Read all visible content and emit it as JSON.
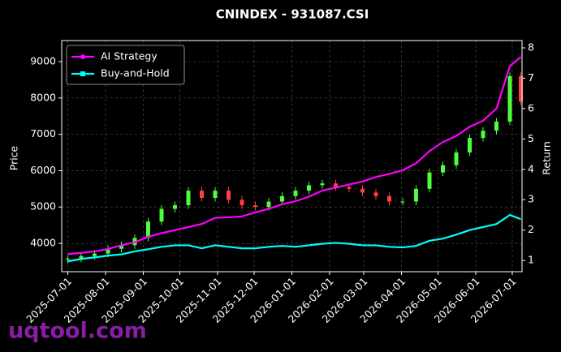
{
  "chart_data": {
    "type": "candlestick",
    "title": "CNINDEX - 931087.CSI",
    "ylabel": "Price",
    "y2label": "Return",
    "watermark": "uqtool.com",
    "x": [
      "2025-07-01",
      "2025-07-12",
      "2025-07-23",
      "2025-08-03",
      "2025-08-14",
      "2025-08-25",
      "2025-09-05",
      "2025-09-16",
      "2025-09-27",
      "2025-10-08",
      "2025-10-19",
      "2025-10-30",
      "2025-11-10",
      "2025-11-21",
      "2025-12-02",
      "2025-12-13",
      "2025-12-24",
      "2026-01-04",
      "2026-01-15",
      "2026-01-26",
      "2026-02-06",
      "2026-02-17",
      "2026-02-28",
      "2026-03-11",
      "2026-03-22",
      "2026-04-02",
      "2026-04-13",
      "2026-04-24",
      "2026-05-05",
      "2026-05-16",
      "2026-05-27",
      "2026-06-07",
      "2026-06-18",
      "2026-06-29",
      "2026-07-08"
    ],
    "open": [
      3550,
      3580,
      3650,
      3720,
      3850,
      3950,
      4150,
      4600,
      4950,
      5050,
      5450,
      5250,
      5450,
      5200,
      5050,
      5000,
      5150,
      5300,
      5450,
      5600,
      5650,
      5550,
      5500,
      5400,
      5300,
      5150,
      5150,
      5500,
      5950,
      6150,
      6500,
      6900,
      7100,
      7350,
      8600
    ],
    "high": [
      3680,
      3750,
      3820,
      3950,
      4050,
      4250,
      4700,
      5050,
      5150,
      5550,
      5550,
      5550,
      5550,
      5300,
      5150,
      5250,
      5400,
      5550,
      5700,
      5750,
      5750,
      5650,
      5600,
      5500,
      5400,
      5250,
      5600,
      6050,
      6250,
      6600,
      7000,
      7200,
      7450,
      8700,
      8700
    ],
    "low": [
      3450,
      3480,
      3550,
      3620,
      3750,
      3850,
      4050,
      4500,
      4850,
      4950,
      5150,
      5150,
      5100,
      4950,
      4900,
      4900,
      5050,
      5200,
      5350,
      5500,
      5450,
      5400,
      5300,
      5200,
      5050,
      5050,
      5050,
      5400,
      5850,
      6050,
      6400,
      6800,
      7000,
      7250,
      7800
    ],
    "close": [
      3580,
      3650,
      3720,
      3850,
      3950,
      4150,
      4600,
      4950,
      5050,
      5450,
      5250,
      5450,
      5200,
      5050,
      5000,
      5150,
      5300,
      5450,
      5600,
      5650,
      5550,
      5500,
      5400,
      5300,
      5150,
      5150,
      5500,
      5950,
      6150,
      6500,
      6900,
      7100,
      7350,
      8600,
      7900
    ],
    "up_color": "#4cff3c",
    "down_color": "#ff4040",
    "series": [
      {
        "name": "AI Strategy",
        "color": "#ff00ff",
        "axis": "y2",
        "marker": "circle",
        "values": [
          1.21,
          1.25,
          1.3,
          1.38,
          1.5,
          1.6,
          1.78,
          1.9,
          2.0,
          2.1,
          2.2,
          2.4,
          2.42,
          2.45,
          2.58,
          2.7,
          2.85,
          2.95,
          3.1,
          3.3,
          3.4,
          3.5,
          3.6,
          3.75,
          3.85,
          3.97,
          4.2,
          4.6,
          4.9,
          5.1,
          5.4,
          5.6,
          6.0,
          7.4,
          7.7
        ]
      },
      {
        "name": "Buy-and-Hold",
        "color": "#00ffff",
        "axis": "y2",
        "marker": "square",
        "values": [
          0.97,
          1.05,
          1.1,
          1.16,
          1.2,
          1.3,
          1.37,
          1.45,
          1.5,
          1.5,
          1.4,
          1.5,
          1.45,
          1.4,
          1.4,
          1.45,
          1.48,
          1.45,
          1.5,
          1.55,
          1.58,
          1.55,
          1.5,
          1.5,
          1.45,
          1.43,
          1.48,
          1.65,
          1.72,
          1.85,
          2.0,
          2.1,
          2.2,
          2.5,
          2.36
        ]
      }
    ],
    "xlim": [
      "2025-06-26",
      "2026-07-09"
    ],
    "xticks": [
      "2025-07-01",
      "2025-08-01",
      "2025-09-01",
      "2025-10-01",
      "2025-11-01",
      "2025-12-01",
      "2026-01-01",
      "2026-02-01",
      "2026-03-01",
      "2026-04-01",
      "2026-05-01",
      "2026-06-01",
      "2026-07-01"
    ],
    "ylim": [
      3220,
      9580
    ],
    "yticks": [
      4000,
      5000,
      6000,
      7000,
      8000,
      9000
    ],
    "y2lim": [
      0.63,
      8.24
    ],
    "y2ticks": [
      1,
      2,
      3,
      4,
      5,
      6,
      7,
      8
    ],
    "grid": true,
    "legend": "upper left"
  }
}
